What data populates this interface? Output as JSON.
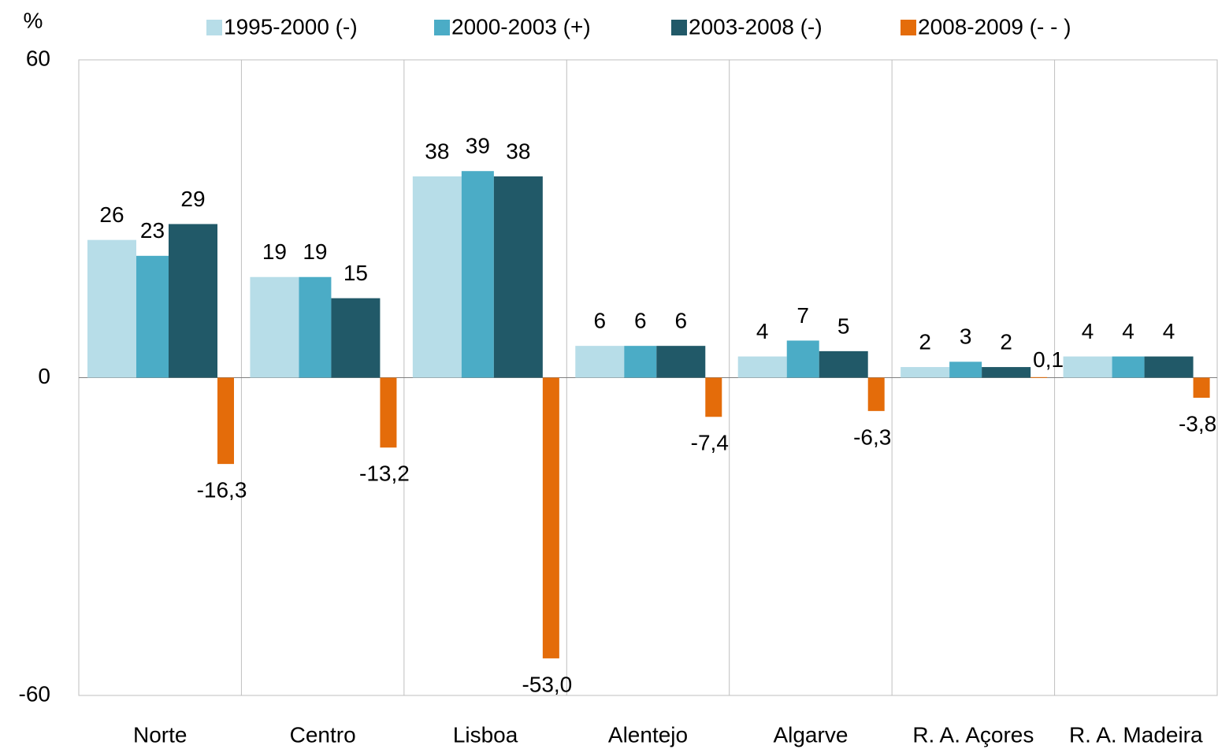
{
  "chart_data": {
    "type": "bar",
    "y_axis_label": "%",
    "categories": [
      "Norte",
      "Centro",
      "Lisboa",
      "Alentejo",
      "Algarve",
      "R. A. Açores",
      "R. A. Madeira"
    ],
    "series": [
      {
        "name": "1995-2000 (-)",
        "color": "#b7dde8",
        "values": [
          26,
          19,
          38,
          6,
          4,
          2,
          4
        ]
      },
      {
        "name": "2000-2003 (+)",
        "color": "#4bacc6",
        "values": [
          23,
          19,
          39,
          6,
          7,
          3,
          4
        ]
      },
      {
        "name": "2003-2008 (-)",
        "color": "#215968",
        "values": [
          29,
          15,
          38,
          6,
          5,
          2,
          4
        ]
      },
      {
        "name": "2008-2009 (- - )",
        "color": "#e46c0a",
        "values": [
          -16.3,
          -13.2,
          -53.0,
          -7.4,
          -6.3,
          0.1,
          -3.8
        ],
        "value_labels": [
          "-16,3",
          "-13,2",
          "-53,0",
          "-7,4",
          "-6,3",
          "0,1",
          "-3,8"
        ]
      }
    ],
    "ylim": [
      -60,
      60
    ],
    "yticks": [
      -60,
      0,
      60
    ],
    "grid": true,
    "legend": "top"
  }
}
